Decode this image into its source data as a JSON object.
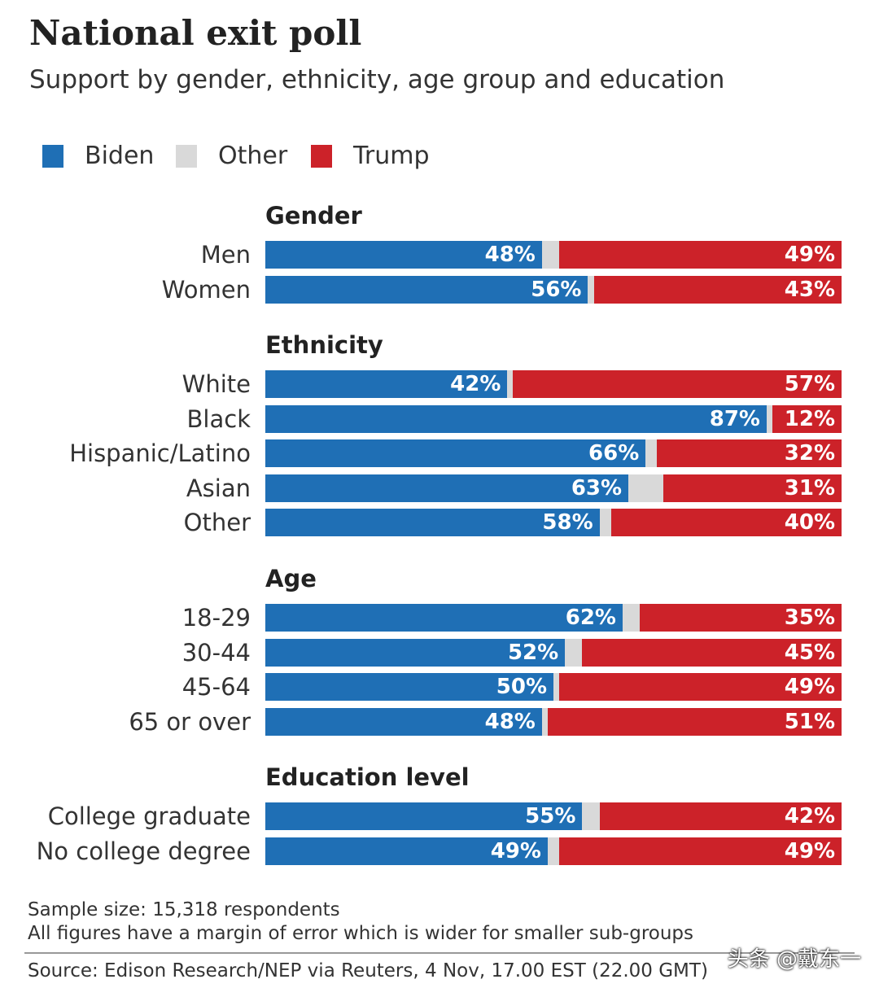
{
  "chart_data": {
    "type": "bar",
    "stacked": true,
    "orientation": "horizontal",
    "title": "National exit poll",
    "subtitle": "Support by gender, ethnicity, age group and education",
    "legend": [
      {
        "name": "Biden",
        "color": "#1f6fb5"
      },
      {
        "name": "Other",
        "color": "#d9d9d9"
      },
      {
        "name": "Trump",
        "color": "#cc2229"
      }
    ],
    "sections": [
      {
        "heading": "Gender",
        "rows": [
          {
            "label": "Men",
            "biden": 48,
            "trump": 49,
            "biden_label": "48%",
            "trump_label": "49%"
          },
          {
            "label": "Women",
            "biden": 56,
            "trump": 43,
            "biden_label": "56%",
            "trump_label": "43%"
          }
        ]
      },
      {
        "heading": "Ethnicity",
        "rows": [
          {
            "label": "White",
            "biden": 42,
            "trump": 57,
            "biden_label": "42%",
            "trump_label": "57%"
          },
          {
            "label": "Black",
            "biden": 87,
            "trump": 12,
            "biden_label": "87%",
            "trump_label": "12%"
          },
          {
            "label": "Hispanic/Latino",
            "biden": 66,
            "trump": 32,
            "biden_label": "66%",
            "trump_label": "32%"
          },
          {
            "label": "Asian",
            "biden": 63,
            "trump": 31,
            "biden_label": "63%",
            "trump_label": "31%"
          },
          {
            "label": "Other",
            "biden": 58,
            "trump": 40,
            "biden_label": "58%",
            "trump_label": "40%"
          }
        ]
      },
      {
        "heading": "Age",
        "rows": [
          {
            "label": "18-29",
            "biden": 62,
            "trump": 35,
            "biden_label": "62%",
            "trump_label": "35%"
          },
          {
            "label": "30-44",
            "biden": 52,
            "trump": 45,
            "biden_label": "52%",
            "trump_label": "45%"
          },
          {
            "label": "45-64",
            "biden": 50,
            "trump": 49,
            "biden_label": "50%",
            "trump_label": "49%"
          },
          {
            "label": "65 or over",
            "biden": 48,
            "trump": 51,
            "biden_label": "48%",
            "trump_label": "51%"
          }
        ]
      },
      {
        "heading": "Education level",
        "rows": [
          {
            "label": "College graduate",
            "biden": 55,
            "trump": 42,
            "biden_label": "55%",
            "trump_label": "42%"
          },
          {
            "label": "No college degree",
            "biden": 49,
            "trump": 49,
            "biden_label": "49%",
            "trump_label": "49%"
          }
        ]
      }
    ],
    "xlim": [
      0,
      100
    ]
  },
  "notes": {
    "sample": "Sample size: 15,318 respondents",
    "margin": "All figures have a margin of error which is wider for smaller sub-groups",
    "source": "Source: Edison Research/NEP via Reuters,  4 Nov, 17.00 EST (22.00 GMT)"
  },
  "watermark": "头条 @戴东一"
}
